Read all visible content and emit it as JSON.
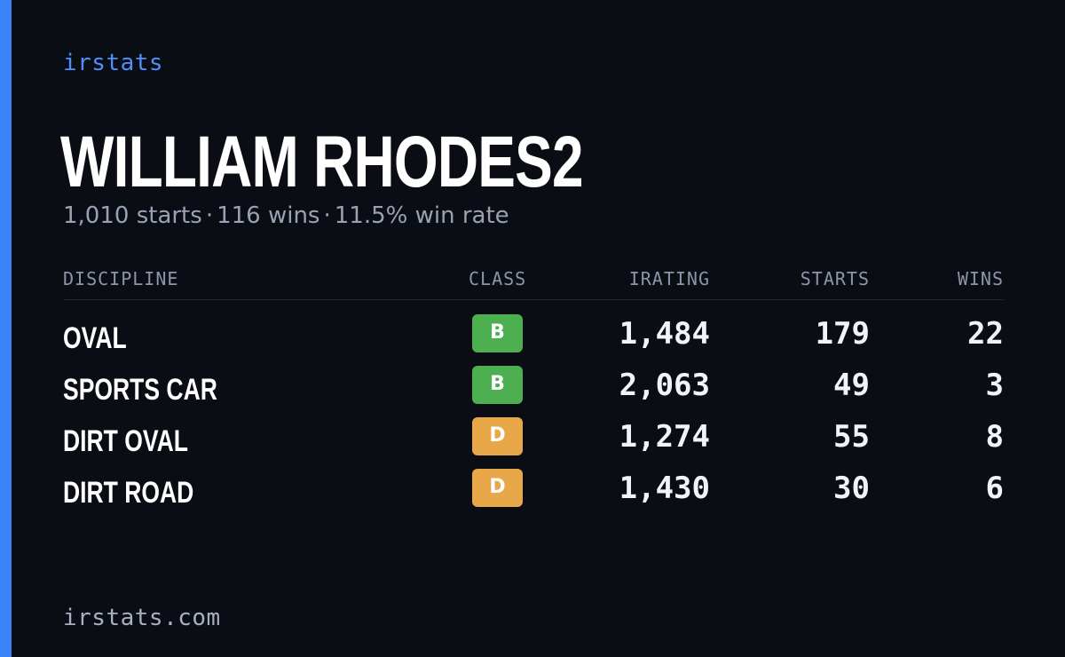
{
  "brand": "irstats",
  "player": {
    "name": "WILLIAM RHODES2"
  },
  "summary": {
    "starts": "1,010 starts",
    "wins": "116 wins",
    "win_rate": "11.5% win rate",
    "separator": "·"
  },
  "table": {
    "headers": {
      "discipline": "DISCIPLINE",
      "class": "CLASS",
      "irating": "IRATING",
      "starts": "STARTS",
      "wins": "WINS"
    },
    "rows": [
      {
        "discipline": "OVAL",
        "class": "B",
        "class_color": "#4caf50",
        "irating": "1,484",
        "starts": "179",
        "wins": "22"
      },
      {
        "discipline": "SPORTS CAR",
        "class": "B",
        "class_color": "#4caf50",
        "irating": "2,063",
        "starts": "49",
        "wins": "3"
      },
      {
        "discipline": "DIRT OVAL",
        "class": "D",
        "class_color": "#e8a84a",
        "irating": "1,274",
        "starts": "55",
        "wins": "8"
      },
      {
        "discipline": "DIRT ROAD",
        "class": "D",
        "class_color": "#e8a84a",
        "irating": "1,430",
        "starts": "30",
        "wins": "6"
      }
    ]
  },
  "footer": {
    "site": "irstats.com"
  },
  "colors": {
    "background": "#0a0d14",
    "accent": "#3b82f6",
    "class_b": "#4caf50",
    "class_d": "#e8a84a"
  }
}
